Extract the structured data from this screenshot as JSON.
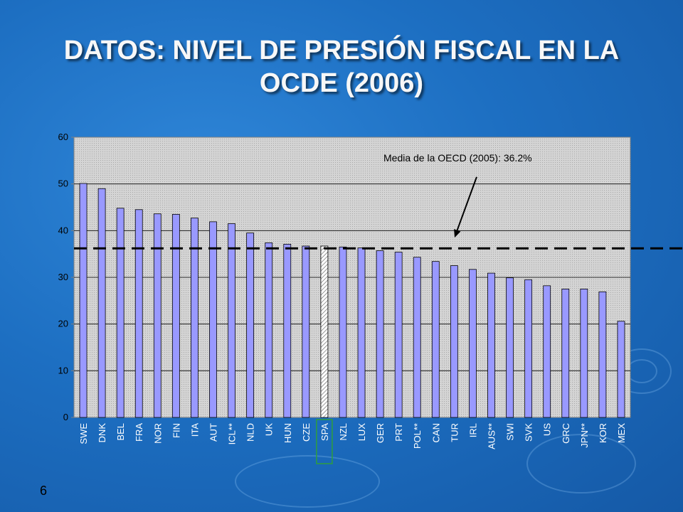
{
  "slide": {
    "title": "DATOS: NIVEL DE PRESIÓN FISCAL EN LA OCDE (2006)",
    "slide_number": "6"
  },
  "colors": {
    "bar": "#9999ff",
    "highlight_border": "#2e9e3e",
    "mean_line": "#000000",
    "plot_background": "#dcdcdc"
  },
  "chart_data": {
    "type": "bar",
    "title": "",
    "xlabel": "",
    "ylabel": "",
    "ylim": [
      0,
      60
    ],
    "yticks": [
      0,
      10,
      20,
      30,
      40,
      50,
      60
    ],
    "grid": true,
    "categories": [
      "SWE",
      "DNK",
      "BEL",
      "FRA",
      "NOR",
      "FIN",
      "ITA",
      "AUT",
      "ICL**",
      "NLD",
      "UK",
      "HUN",
      "CZE",
      "SPA",
      "NZL",
      "LUX",
      "GER",
      "PRT",
      "POL**",
      "CAN",
      "TUR",
      "IRL",
      "AUS**",
      "SWI",
      "SVK",
      "US",
      "GRC",
      "JPN**",
      "KOR",
      "MEX"
    ],
    "values": [
      50.1,
      49.0,
      44.8,
      44.5,
      43.6,
      43.5,
      42.7,
      41.9,
      41.5,
      39.5,
      37.4,
      37.1,
      36.7,
      36.7,
      36.5,
      36.3,
      35.7,
      35.4,
      34.3,
      33.4,
      32.5,
      31.7,
      30.9,
      29.9,
      29.5,
      28.2,
      27.5,
      27.5,
      26.9,
      20.6
    ],
    "highlight_category": "SPA",
    "annotation": {
      "text": "Media de la OECD (2005): 36.2%",
      "value": 36.2
    }
  }
}
